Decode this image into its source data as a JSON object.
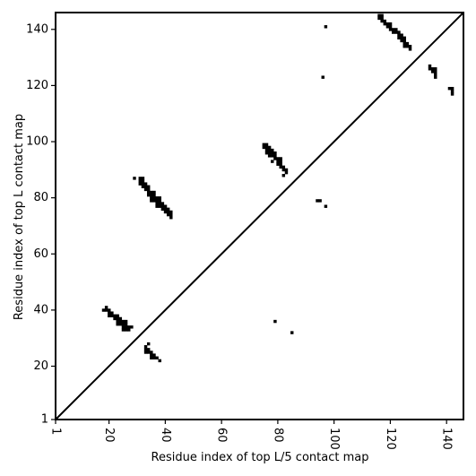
{
  "chart_data": {
    "type": "heatmap",
    "title": "",
    "xlabel": "Residue index of top L/5 contact map",
    "ylabel": "Residue index of top L contact map",
    "xlim": [
      1,
      146
    ],
    "ylim": [
      1,
      146
    ],
    "xticks": [
      1,
      20,
      40,
      60,
      80,
      100,
      120,
      140
    ],
    "yticks": [
      1,
      20,
      40,
      60,
      80,
      100,
      120,
      140
    ],
    "x_tick_rotation": -90,
    "grid": false,
    "legend": "none",
    "diagonal_line": true,
    "cell_color": "#000000",
    "background_color": "#ffffff",
    "cells": [
      [
        116,
        145
      ],
      [
        117,
        145
      ],
      [
        116,
        144
      ],
      [
        117,
        144
      ],
      [
        117,
        143
      ],
      [
        118,
        143
      ],
      [
        118,
        142
      ],
      [
        119,
        142
      ],
      [
        120,
        142
      ],
      [
        119,
        141
      ],
      [
        120,
        141
      ],
      [
        120,
        140
      ],
      [
        121,
        140
      ],
      [
        122,
        140
      ],
      [
        121,
        139
      ],
      [
        122,
        139
      ],
      [
        123,
        139
      ],
      [
        123,
        138
      ],
      [
        124,
        138
      ],
      [
        123,
        137
      ],
      [
        124,
        137
      ],
      [
        125,
        137
      ],
      [
        124,
        136
      ],
      [
        125,
        136
      ],
      [
        125,
        135
      ],
      [
        126,
        135
      ],
      [
        125,
        134
      ],
      [
        126,
        134
      ],
      [
        127,
        134
      ],
      [
        127,
        133
      ],
      [
        97,
        141
      ],
      [
        96,
        123
      ],
      [
        134,
        127
      ],
      [
        134,
        126
      ],
      [
        135,
        126
      ],
      [
        136,
        126
      ],
      [
        135,
        125
      ],
      [
        136,
        125
      ],
      [
        136,
        124
      ],
      [
        136,
        123
      ],
      [
        141,
        119
      ],
      [
        142,
        119
      ],
      [
        142,
        118
      ],
      [
        142,
        117
      ],
      [
        75,
        99
      ],
      [
        76,
        99
      ],
      [
        75,
        98
      ],
      [
        76,
        98
      ],
      [
        77,
        98
      ],
      [
        76,
        97
      ],
      [
        77,
        97
      ],
      [
        78,
        97
      ],
      [
        76,
        96
      ],
      [
        77,
        96
      ],
      [
        78,
        96
      ],
      [
        79,
        96
      ],
      [
        77,
        95
      ],
      [
        78,
        95
      ],
      [
        79,
        95
      ],
      [
        79,
        94
      ],
      [
        80,
        94
      ],
      [
        81,
        94
      ],
      [
        78,
        93
      ],
      [
        80,
        93
      ],
      [
        81,
        93
      ],
      [
        80,
        92
      ],
      [
        81,
        92
      ],
      [
        81,
        91
      ],
      [
        82,
        91
      ],
      [
        82,
        90
      ],
      [
        83,
        90
      ],
      [
        83,
        89
      ],
      [
        82,
        88
      ],
      [
        29,
        87
      ],
      [
        31,
        87
      ],
      [
        32,
        87
      ],
      [
        31,
        86
      ],
      [
        32,
        86
      ],
      [
        31,
        85
      ],
      [
        32,
        85
      ],
      [
        33,
        85
      ],
      [
        32,
        84
      ],
      [
        33,
        84
      ],
      [
        34,
        84
      ],
      [
        33,
        83
      ],
      [
        34,
        83
      ],
      [
        34,
        82
      ],
      [
        35,
        82
      ],
      [
        36,
        82
      ],
      [
        34,
        81
      ],
      [
        35,
        81
      ],
      [
        36,
        81
      ],
      [
        35,
        80
      ],
      [
        36,
        80
      ],
      [
        37,
        80
      ],
      [
        38,
        80
      ],
      [
        35,
        79
      ],
      [
        36,
        79
      ],
      [
        37,
        79
      ],
      [
        38,
        79
      ],
      [
        37,
        78
      ],
      [
        38,
        78
      ],
      [
        39,
        78
      ],
      [
        37,
        77
      ],
      [
        38,
        77
      ],
      [
        39,
        77
      ],
      [
        40,
        77
      ],
      [
        39,
        76
      ],
      [
        40,
        76
      ],
      [
        41,
        76
      ],
      [
        40,
        75
      ],
      [
        41,
        75
      ],
      [
        42,
        75
      ],
      [
        41,
        74
      ],
      [
        42,
        74
      ],
      [
        42,
        73
      ],
      [
        94,
        79
      ],
      [
        95,
        79
      ],
      [
        97,
        77
      ],
      [
        19,
        41
      ],
      [
        18,
        40
      ],
      [
        19,
        40
      ],
      [
        20,
        40
      ],
      [
        20,
        39
      ],
      [
        21,
        39
      ],
      [
        20,
        38
      ],
      [
        21,
        38
      ],
      [
        22,
        38
      ],
      [
        23,
        38
      ],
      [
        22,
        37
      ],
      [
        23,
        37
      ],
      [
        24,
        37
      ],
      [
        23,
        36
      ],
      [
        24,
        36
      ],
      [
        25,
        36
      ],
      [
        26,
        36
      ],
      [
        23,
        35
      ],
      [
        24,
        35
      ],
      [
        25,
        35
      ],
      [
        26,
        35
      ],
      [
        25,
        34
      ],
      [
        26,
        34
      ],
      [
        27,
        34
      ],
      [
        28,
        34
      ],
      [
        25,
        33
      ],
      [
        26,
        33
      ],
      [
        27,
        33
      ],
      [
        79,
        36
      ],
      [
        85,
        32
      ],
      [
        34,
        28
      ],
      [
        33,
        27
      ],
      [
        33,
        26
      ],
      [
        34,
        26
      ],
      [
        33,
        25
      ],
      [
        34,
        25
      ],
      [
        35,
        25
      ],
      [
        35,
        24
      ],
      [
        36,
        24
      ],
      [
        35,
        23
      ],
      [
        36,
        23
      ],
      [
        37,
        23
      ],
      [
        38,
        22
      ]
    ]
  }
}
